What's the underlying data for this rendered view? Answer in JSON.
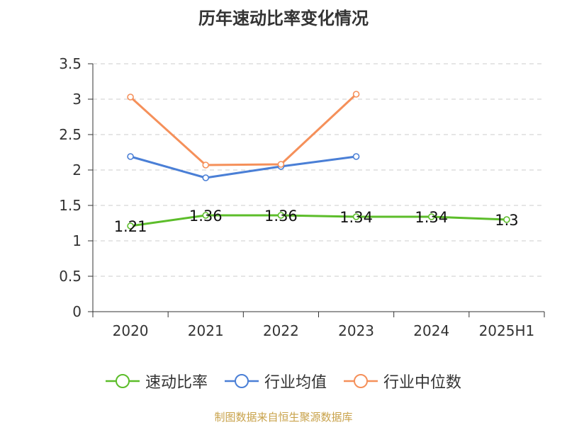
{
  "chart_data": {
    "type": "line",
    "title": "历年速动比率变化情况",
    "categories": [
      "2020",
      "2021",
      "2022",
      "2023",
      "2024",
      "2025H1"
    ],
    "ylim": [
      0,
      3.5
    ],
    "yticks": [
      "0",
      "0.5",
      "1",
      "1.5",
      "2",
      "2.5",
      "3",
      "3.5"
    ],
    "grid": true,
    "legend_position": "bottom",
    "series": [
      {
        "name": "速动比率",
        "color": "#5cbd2a",
        "values": [
          1.21,
          1.36,
          1.36,
          1.34,
          1.34,
          1.3
        ],
        "labels": [
          "1.21",
          "1.36",
          "1.36",
          "1.34",
          "1.34",
          "1.3"
        ],
        "show_labels": true
      },
      {
        "name": "行业均值",
        "color": "#4a7fd6",
        "values": [
          2.19,
          1.89,
          2.05,
          2.19,
          null,
          null
        ],
        "show_labels": false
      },
      {
        "name": "行业中位数",
        "color": "#f5905a",
        "values": [
          3.03,
          2.07,
          2.08,
          3.07,
          null,
          null
        ],
        "show_labels": false
      }
    ]
  },
  "source_note": "制图数据来自恒生聚源数据库"
}
